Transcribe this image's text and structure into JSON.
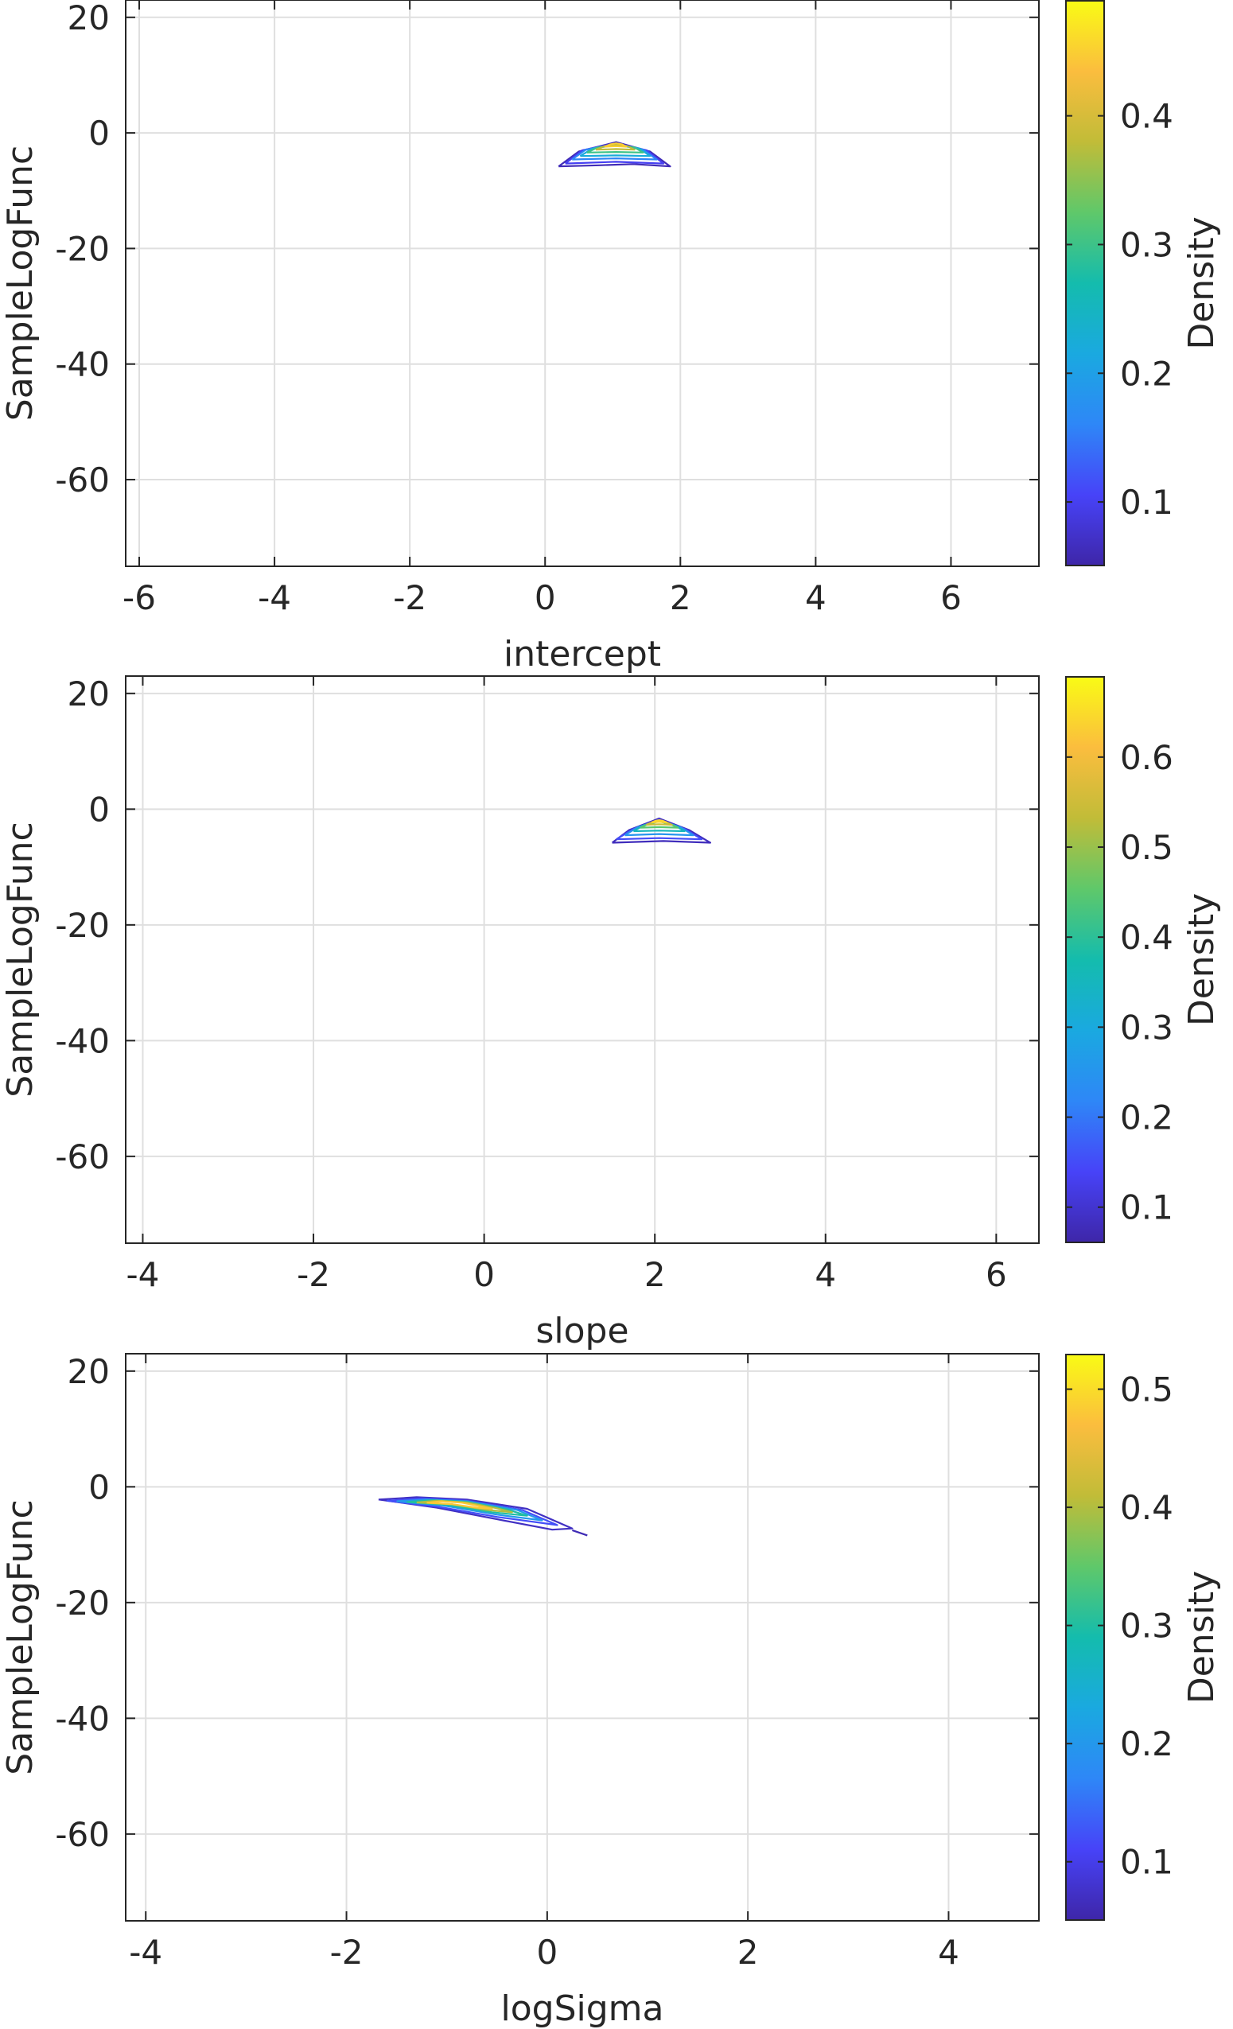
{
  "chart_data": [
    {
      "type": "contour",
      "xlabel": "intercept",
      "ylabel": "SampleLogFunc",
      "xlim": [
        -6.2,
        7.3
      ],
      "ylim": [
        -75,
        23
      ],
      "xticks": [
        -6,
        -4,
        -2,
        0,
        2,
        4,
        6
      ],
      "yticks": [
        20,
        0,
        -20,
        -40,
        -60
      ],
      "grid": true,
      "colorbar": {
        "label": "Density",
        "range": [
          0.05,
          0.49
        ],
        "ticks": [
          0.1,
          0.2,
          0.3,
          0.4
        ]
      },
      "density_peak": {
        "x": 1.05,
        "y": -1.5
      },
      "contours": [
        {
          "level": 0.06,
          "x": [
            0.2,
            0.5,
            1.05,
            1.55,
            1.85,
            1.3,
            0.8,
            0.2
          ],
          "y": [
            -5.8,
            -3.2,
            -1.6,
            -3.2,
            -5.8,
            -5.4,
            -5.6,
            -5.8
          ]
        },
        {
          "level": 0.1,
          "x": [
            0.3,
            0.55,
            1.05,
            1.5,
            1.75,
            1.05,
            0.3
          ],
          "y": [
            -5.3,
            -3.0,
            -1.8,
            -3.0,
            -5.3,
            -5.0,
            -5.3
          ]
        },
        {
          "level": 0.16,
          "x": [
            0.4,
            0.6,
            1.05,
            1.45,
            1.65,
            1.05,
            0.4
          ],
          "y": [
            -4.6,
            -2.9,
            -2.0,
            -2.9,
            -4.6,
            -4.4,
            -4.6
          ]
        },
        {
          "level": 0.22,
          "x": [
            0.52,
            0.7,
            1.05,
            1.4,
            1.55,
            1.05,
            0.52
          ],
          "y": [
            -4.0,
            -2.7,
            -2.1,
            -2.7,
            -4.0,
            -3.9,
            -4.0
          ]
        },
        {
          "level": 0.3,
          "x": [
            0.62,
            0.78,
            1.05,
            1.32,
            1.45,
            1.05,
            0.62
          ],
          "y": [
            -3.4,
            -2.5,
            -2.1,
            -2.5,
            -3.4,
            -3.3,
            -3.4
          ]
        },
        {
          "level": 0.38,
          "x": [
            0.75,
            0.88,
            1.05,
            1.22,
            1.32,
            1.05,
            0.75
          ],
          "y": [
            -2.9,
            -2.3,
            -2.0,
            -2.3,
            -2.9,
            -2.8,
            -2.9
          ]
        },
        {
          "level": 0.45,
          "x": [
            0.88,
            0.96,
            1.05,
            1.14,
            1.2,
            1.05,
            0.88
          ],
          "y": [
            -2.4,
            -2.0,
            -1.8,
            -2.0,
            -2.4,
            -2.3,
            -2.4
          ]
        }
      ]
    },
    {
      "type": "contour",
      "xlabel": "slope",
      "ylabel": "SampleLogFunc",
      "xlim": [
        -4.2,
        6.5
      ],
      "ylim": [
        -75,
        23
      ],
      "xticks": [
        -4,
        -2,
        0,
        2,
        4,
        6
      ],
      "yticks": [
        20,
        0,
        -20,
        -40,
        -60
      ],
      "grid": true,
      "colorbar": {
        "label": "Density",
        "range": [
          0.06,
          0.69
        ],
        "ticks": [
          0.1,
          0.2,
          0.3,
          0.4,
          0.5,
          0.6
        ]
      },
      "density_peak": {
        "x": 2.05,
        "y": -1.5
      },
      "contours": [
        {
          "level": 0.08,
          "x": [
            1.5,
            1.7,
            2.05,
            2.4,
            2.65,
            2.1,
            1.5
          ],
          "y": [
            -5.8,
            -3.6,
            -1.6,
            -3.6,
            -5.8,
            -5.5,
            -5.8
          ]
        },
        {
          "level": 0.15,
          "x": [
            1.55,
            1.75,
            2.05,
            2.35,
            2.55,
            2.05,
            1.55
          ],
          "y": [
            -5.2,
            -3.4,
            -1.8,
            -3.4,
            -5.2,
            -5.0,
            -5.2
          ]
        },
        {
          "level": 0.25,
          "x": [
            1.65,
            1.8,
            2.05,
            2.3,
            2.45,
            2.05,
            1.65
          ],
          "y": [
            -4.5,
            -3.1,
            -2.0,
            -3.1,
            -4.5,
            -4.3,
            -4.5
          ]
        },
        {
          "level": 0.35,
          "x": [
            1.75,
            1.87,
            2.05,
            2.23,
            2.35,
            2.05,
            1.75
          ],
          "y": [
            -3.8,
            -2.8,
            -2.1,
            -2.8,
            -3.8,
            -3.7,
            -3.8
          ]
        },
        {
          "level": 0.45,
          "x": [
            1.83,
            1.93,
            2.05,
            2.17,
            2.27,
            2.05,
            1.83
          ],
          "y": [
            -3.2,
            -2.5,
            -2.1,
            -2.5,
            -3.2,
            -3.1,
            -3.2
          ]
        },
        {
          "level": 0.55,
          "x": [
            1.9,
            1.98,
            2.05,
            2.12,
            2.2,
            2.05,
            1.9
          ],
          "y": [
            -2.7,
            -2.2,
            -2.0,
            -2.2,
            -2.7,
            -2.6,
            -2.7
          ]
        },
        {
          "level": 0.64,
          "x": [
            1.96,
            2.01,
            2.05,
            2.09,
            2.14,
            2.05,
            1.96
          ],
          "y": [
            -2.3,
            -2.0,
            -1.9,
            -2.0,
            -2.3,
            -2.2,
            -2.3
          ]
        }
      ]
    },
    {
      "type": "contour",
      "xlabel": "logSigma",
      "ylabel": "SampleLogFunc",
      "xlim": [
        -4.2,
        4.9
      ],
      "ylim": [
        -75,
        23
      ],
      "xticks": [
        -4,
        -2,
        0,
        2,
        4
      ],
      "yticks": [
        20,
        0,
        -20,
        -40,
        -60
      ],
      "grid": true,
      "colorbar": {
        "label": "Density",
        "range": [
          0.05,
          0.53
        ],
        "ticks": [
          0.1,
          0.2,
          0.3,
          0.4,
          0.5
        ]
      },
      "density_peak": {
        "x": -1.0,
        "y": -2.5
      },
      "contours": [
        {
          "level": 0.07,
          "x": [
            -1.68,
            -1.3,
            -0.8,
            -0.2,
            0.25,
            0.05,
            -0.5,
            -1.1,
            -1.68
          ],
          "y": [
            -2.2,
            -1.8,
            -2.2,
            -3.8,
            -7.2,
            -7.4,
            -5.6,
            -3.6,
            -2.2
          ]
        },
        {
          "level": 0.12,
          "x": [
            -1.6,
            -1.25,
            -0.8,
            -0.25,
            0.1,
            -0.5,
            -1.1,
            -1.6
          ],
          "y": [
            -2.4,
            -2.0,
            -2.4,
            -4.0,
            -6.6,
            -5.2,
            -3.4,
            -2.4
          ]
        },
        {
          "level": 0.2,
          "x": [
            -1.5,
            -1.2,
            -0.8,
            -0.3,
            -0.05,
            -0.5,
            -1.05,
            -1.5
          ],
          "y": [
            -2.5,
            -2.2,
            -2.5,
            -4.0,
            -5.8,
            -4.8,
            -3.2,
            -2.5
          ]
        },
        {
          "level": 0.3,
          "x": [
            -1.4,
            -1.15,
            -0.8,
            -0.4,
            -0.2,
            -0.55,
            -1.0,
            -1.4
          ],
          "y": [
            -2.6,
            -2.3,
            -2.6,
            -3.9,
            -5.0,
            -4.4,
            -3.1,
            -2.6
          ]
        },
        {
          "level": 0.4,
          "x": [
            -1.3,
            -1.1,
            -0.8,
            -0.5,
            -0.35,
            -0.6,
            -0.95,
            -1.3
          ],
          "y": [
            -2.7,
            -2.4,
            -2.7,
            -3.7,
            -4.4,
            -4.0,
            -3.0,
            -2.7
          ]
        },
        {
          "level": 0.48,
          "x": [
            -1.2,
            -1.05,
            -0.85,
            -0.65,
            -0.55,
            -0.7,
            -0.95,
            -1.2
          ],
          "y": [
            -2.75,
            -2.5,
            -2.75,
            -3.4,
            -3.8,
            -3.6,
            -3.0,
            -2.75
          ]
        }
      ],
      "outlier_segment": {
        "x": [
          0.25,
          0.4
        ],
        "y": [
          -7.5,
          -8.4
        ]
      }
    }
  ]
}
